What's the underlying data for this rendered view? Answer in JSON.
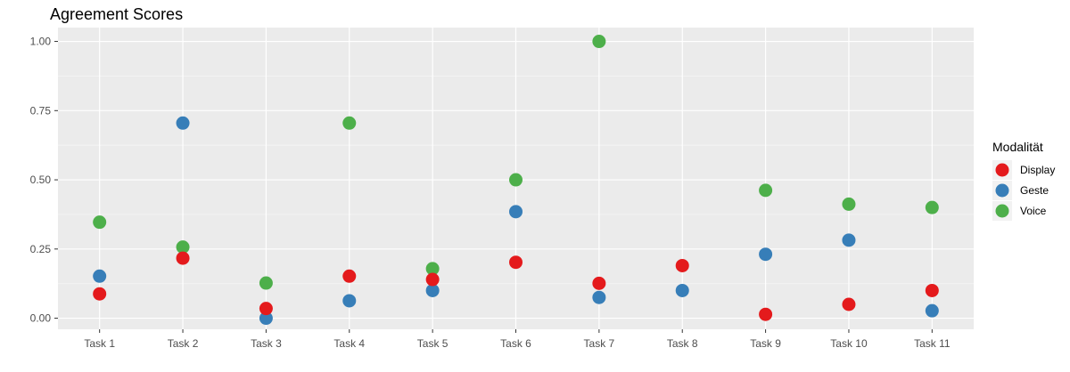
{
  "chart_data": {
    "type": "scatter",
    "title": "Agreement Scores",
    "xlabel": "",
    "ylabel": "",
    "categories": [
      "Task 1",
      "Task 2",
      "Task 3",
      "Task 4",
      "Task 5",
      "Task 6",
      "Task 7",
      "Task 8",
      "Task 9",
      "Task 10",
      "Task 11"
    ],
    "ylim": [
      -0.04,
      1.05
    ],
    "yticks": [
      0.0,
      0.25,
      0.5,
      0.75,
      1.0
    ],
    "ytick_labels": [
      "0.00",
      "0.25",
      "0.50",
      "0.75",
      "1.00"
    ],
    "grid": true,
    "legend": {
      "title": "Modalität",
      "position": "right"
    },
    "series": [
      {
        "name": "Display",
        "color": "#E41A1C",
        "values": [
          0.088,
          0.217,
          0.035,
          0.152,
          0.14,
          0.202,
          0.126,
          0.19,
          0.014,
          0.05,
          0.1
        ]
      },
      {
        "name": "Geste",
        "color": "#377EB8",
        "values": [
          0.152,
          0.705,
          0.0,
          0.063,
          0.1,
          0.385,
          0.075,
          0.1,
          0.231,
          0.282,
          0.027
        ]
      },
      {
        "name": "Voice",
        "color": "#4DAF4A",
        "values": [
          0.347,
          0.257,
          0.127,
          0.705,
          0.179,
          0.5,
          1.0,
          null,
          0.462,
          0.412,
          0.4
        ]
      }
    ]
  }
}
